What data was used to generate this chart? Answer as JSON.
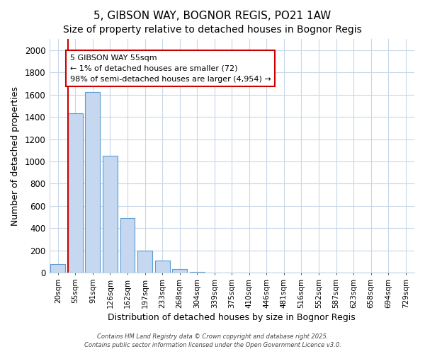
{
  "title": "5, GIBSON WAY, BOGNOR REGIS, PO21 1AW",
  "subtitle": "Size of property relative to detached houses in Bognor Regis",
  "xlabel": "Distribution of detached houses by size in Bognor Regis",
  "ylabel": "Number of detached properties",
  "categories": [
    "20sqm",
    "55sqm",
    "91sqm",
    "126sqm",
    "162sqm",
    "197sqm",
    "233sqm",
    "268sqm",
    "304sqm",
    "339sqm",
    "375sqm",
    "410sqm",
    "446sqm",
    "481sqm",
    "516sqm",
    "552sqm",
    "587sqm",
    "623sqm",
    "658sqm",
    "694sqm",
    "729sqm"
  ],
  "values": [
    80,
    1430,
    1620,
    1050,
    490,
    200,
    110,
    35,
    10,
    0,
    0,
    0,
    0,
    0,
    0,
    0,
    0,
    0,
    0,
    0,
    0
  ],
  "bar_color": "#c5d8f0",
  "bar_edge_color": "#5b9bd5",
  "highlight_index": 1,
  "highlight_line_color": "#cc0000",
  "annotation_line1": "5 GIBSON WAY 55sqm",
  "annotation_line2": "← 1% of detached houses are smaller (72)",
  "annotation_line3": "98% of semi-detached houses are larger (4,954) →",
  "annotation_box_color": "#ffffff",
  "annotation_box_edge_color": "#cc0000",
  "ylim": [
    0,
    2100
  ],
  "yticks": [
    0,
    200,
    400,
    600,
    800,
    1000,
    1200,
    1400,
    1600,
    1800,
    2000
  ],
  "footer1": "Contains HM Land Registry data © Crown copyright and database right 2025.",
  "footer2": "Contains public sector information licensed under the Open Government Licence v3.0.",
  "bg_color": "#ffffff",
  "plot_bg_color": "#ffffff",
  "grid_color": "#c8d8e8",
  "title_fontsize": 11,
  "subtitle_fontsize": 10
}
